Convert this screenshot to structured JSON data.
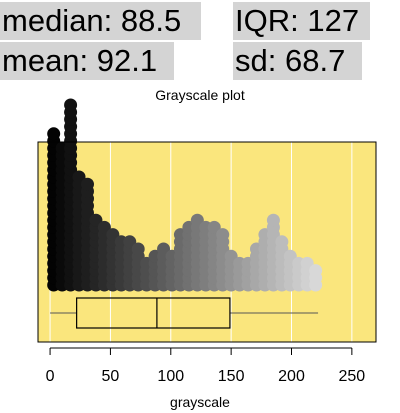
{
  "stats": {
    "median": {
      "label": "median:",
      "value": "88.5"
    },
    "iqr": {
      "label": "IQR:",
      "value": "127"
    },
    "mean": {
      "label": "mean:",
      "value": "92.1"
    },
    "sd": {
      "label": "sd:",
      "value": "68.7"
    }
  },
  "colors": {
    "stat_bg": "#d4d4d4",
    "panel_bg": "#fae67d",
    "grid": "#ffffff"
  },
  "chart_data": {
    "type": "dotplot with boxplot",
    "title": "Grayscale plot",
    "xlabel": "grayscale",
    "ylabel": "",
    "xlim": [
      -10,
      270
    ],
    "xticks": [
      0,
      50,
      100,
      150,
      200,
      250
    ],
    "grid": true,
    "dot_stacks": [
      {
        "x": 3,
        "count": 22
      },
      {
        "x": 10,
        "count": 20
      },
      {
        "x": 17,
        "count": 26
      },
      {
        "x": 24,
        "count": 16
      },
      {
        "x": 31,
        "count": 15
      },
      {
        "x": 38,
        "count": 10
      },
      {
        "x": 45,
        "count": 9
      },
      {
        "x": 52,
        "count": 8
      },
      {
        "x": 59,
        "count": 7
      },
      {
        "x": 66,
        "count": 7
      },
      {
        "x": 73,
        "count": 6
      },
      {
        "x": 80,
        "count": 4
      },
      {
        "x": 87,
        "count": 5
      },
      {
        "x": 94,
        "count": 6
      },
      {
        "x": 101,
        "count": 5
      },
      {
        "x": 108,
        "count": 8
      },
      {
        "x": 115,
        "count": 9
      },
      {
        "x": 122,
        "count": 10
      },
      {
        "x": 129,
        "count": 9
      },
      {
        "x": 136,
        "count": 9
      },
      {
        "x": 143,
        "count": 8
      },
      {
        "x": 150,
        "count": 5
      },
      {
        "x": 157,
        "count": 4
      },
      {
        "x": 164,
        "count": 4
      },
      {
        "x": 171,
        "count": 6
      },
      {
        "x": 178,
        "count": 8
      },
      {
        "x": 185,
        "count": 10
      },
      {
        "x": 192,
        "count": 7
      },
      {
        "x": 199,
        "count": 5
      },
      {
        "x": 206,
        "count": 4
      },
      {
        "x": 213,
        "count": 4
      },
      {
        "x": 220,
        "count": 3
      }
    ],
    "boxplot": {
      "min": 0,
      "q1": 22,
      "median": 88.5,
      "q3": 149,
      "max": 222
    }
  }
}
